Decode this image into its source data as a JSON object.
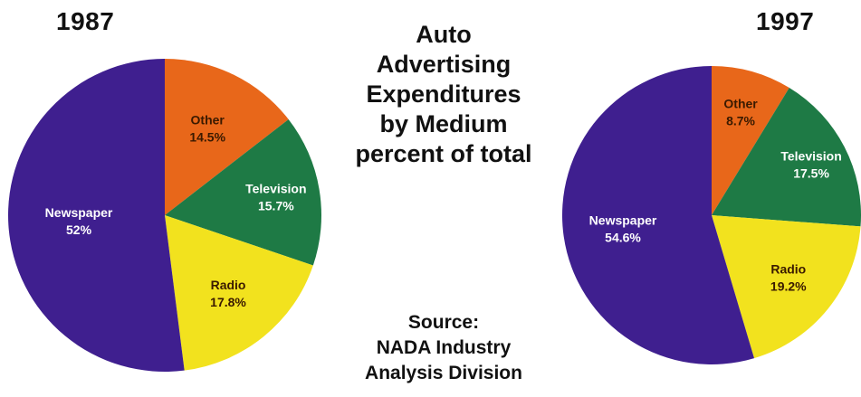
{
  "title_lines": [
    "Auto",
    "Advertising",
    "Expenditures",
    "by Medium",
    "percent of total"
  ],
  "source_lines": [
    "Source:",
    "NADA Industry",
    "Analysis Division"
  ],
  "colors": {
    "Newspaper": "#3f1f8f",
    "Other": "#e8671a",
    "Television": "#1e7a45",
    "Radio": "#f2e21e"
  },
  "chart_data": [
    {
      "type": "pie",
      "title": "1987",
      "slices": [
        {
          "label": "Other",
          "value_label": "14.5%",
          "value": 14.5,
          "text_color": "#3a1a00"
        },
        {
          "label": "Television",
          "value_label": "15.7%",
          "value": 15.7,
          "text_color": "#ffffff"
        },
        {
          "label": "Radio",
          "value_label": "17.8%",
          "value": 17.8,
          "text_color": "#3a1a00"
        },
        {
          "label": "Newspaper",
          "value_label": "52%",
          "value": 52.0,
          "text_color": "#ffffff"
        }
      ]
    },
    {
      "type": "pie",
      "title": "1997",
      "slices": [
        {
          "label": "Other",
          "value_label": "8.7%",
          "value": 8.7,
          "text_color": "#3a1a00"
        },
        {
          "label": "Television",
          "value_label": "17.5%",
          "value": 17.5,
          "text_color": "#ffffff"
        },
        {
          "label": "Radio",
          "value_label": "19.2%",
          "value": 19.2,
          "text_color": "#3a1a00"
        },
        {
          "label": "Newspaper",
          "value_label": "54.6%",
          "value": 54.6,
          "text_color": "#ffffff"
        }
      ]
    }
  ]
}
